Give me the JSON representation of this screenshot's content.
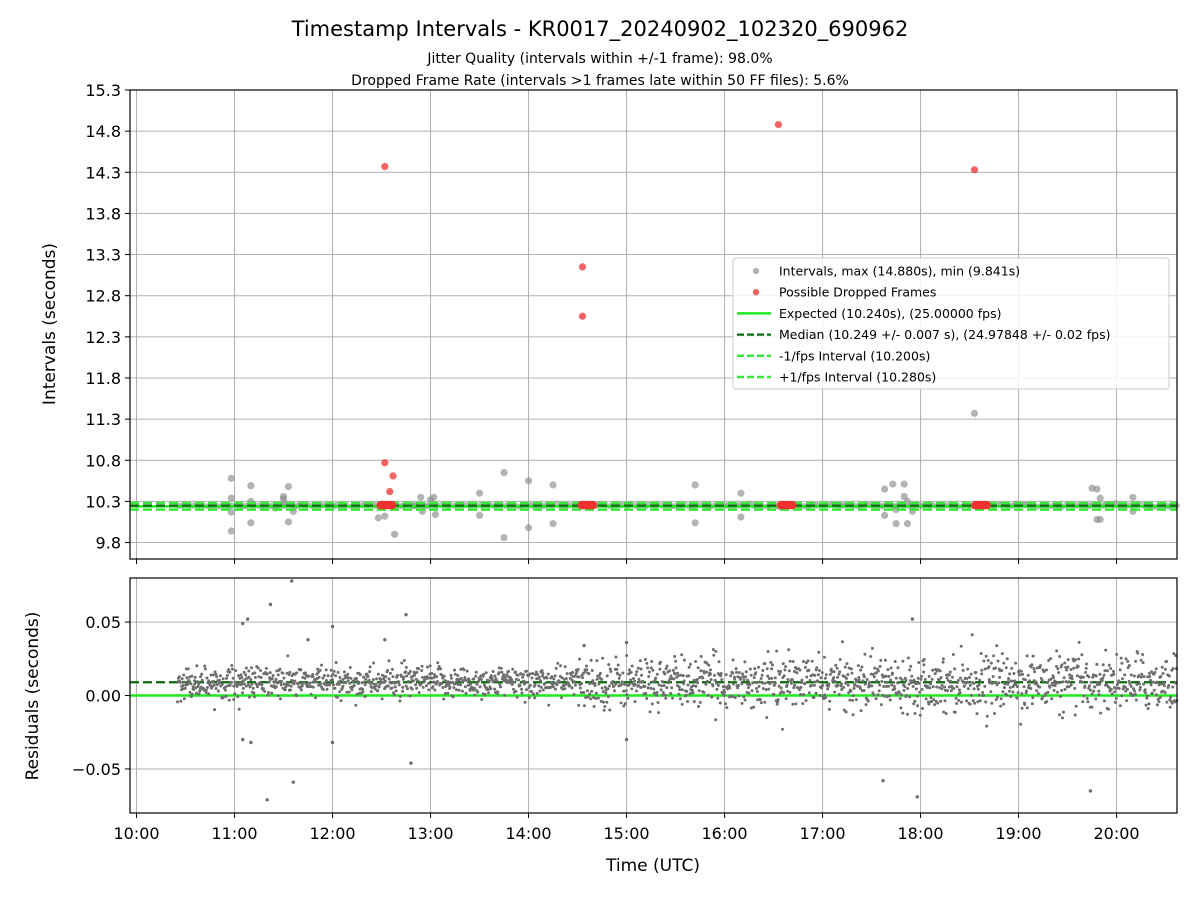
{
  "figure": {
    "title": "Timestamp Intervals - KR0017_20240902_102320_690962",
    "subtitle_1": "Jitter Quality (intervals within +/-1 frame): 98.0%",
    "subtitle_2": "Dropped Frame Rate (intervals >1 frames late within 50 FF files): 5.6%"
  },
  "chart_data": [
    {
      "type": "scatter",
      "xlabel": "",
      "ylabel": "Intervals (seconds)",
      "xlim": [
        "09:56",
        "20:37"
      ],
      "ylim": [
        9.6,
        15.3
      ],
      "yticks": [
        "9.8",
        "10.3",
        "10.8",
        "11.3",
        "11.8",
        "12.3",
        "12.8",
        "13.3",
        "13.8",
        "14.3",
        "14.8",
        "15.3"
      ],
      "grid": true,
      "legend_position": "center-right",
      "colors": {
        "intervals": "#8c8c8c",
        "dropped": "#f03030",
        "expected": "#1ee81e",
        "median": "#0a6a0a",
        "fps_bounds": "#3ae83a"
      },
      "series": [
        {
          "name": "Intervals, max (14.880s), min (9.841s)",
          "points": [
            [
              "10:58",
              10.58
            ],
            [
              "10:58",
              10.34
            ],
            [
              "10:58",
              10.17
            ],
            [
              "10:58",
              9.94
            ],
            [
              "11:10",
              10.49
            ],
            [
              "11:10",
              10.3
            ],
            [
              "11:10",
              10.04
            ],
            [
              "11:25",
              10.22
            ],
            [
              "11:30",
              10.33
            ],
            [
              "11:30",
              10.36
            ],
            [
              "11:31",
              10.27
            ],
            [
              "11:33",
              10.48
            ],
            [
              "11:33",
              10.05
            ],
            [
              "11:36",
              10.18
            ],
            [
              "12:28",
              10.1
            ],
            [
              "12:32",
              10.12
            ],
            [
              "12:38",
              9.9
            ],
            [
              "12:50",
              10.25
            ],
            [
              "12:54",
              10.35
            ],
            [
              "12:55",
              10.18
            ],
            [
              "13:00",
              10.32
            ],
            [
              "13:02",
              10.35
            ],
            [
              "13:03",
              10.14
            ],
            [
              "13:30",
              10.4
            ],
            [
              "13:30",
              10.13
            ],
            [
              "13:45",
              10.65
            ],
            [
              "13:45",
              9.86
            ],
            [
              "14:00",
              10.55
            ],
            [
              "14:00",
              9.98
            ],
            [
              "14:15",
              10.5
            ],
            [
              "14:15",
              10.03
            ],
            [
              "15:42",
              10.5
            ],
            [
              "15:42",
              10.04
            ],
            [
              "16:10",
              10.4
            ],
            [
              "16:10",
              10.11
            ],
            [
              "17:38",
              10.45
            ],
            [
              "17:38",
              10.13
            ],
            [
              "17:43",
              10.51
            ],
            [
              "17:45",
              10.2
            ],
            [
              "17:45",
              10.03
            ],
            [
              "17:50",
              10.51
            ],
            [
              "17:50",
              10.36
            ],
            [
              "17:52",
              10.3
            ],
            [
              "17:52",
              10.03
            ],
            [
              "17:55",
              10.18
            ],
            [
              "18:33",
              11.37
            ],
            [
              "19:45",
              10.46
            ],
            [
              "19:48",
              10.45
            ],
            [
              "19:48",
              10.08
            ],
            [
              "19:50",
              10.08
            ],
            [
              "19:50",
              10.34
            ],
            [
              "20:10",
              10.35
            ],
            [
              "20:10",
              10.18
            ]
          ]
        },
        {
          "name": "Possible Dropped Frames",
          "points": [
            [
              "12:32",
              14.37
            ],
            [
              "12:32",
              10.77
            ],
            [
              "12:35",
              10.42
            ],
            [
              "12:37",
              10.61
            ],
            [
              "14:33",
              13.15
            ],
            [
              "14:33",
              12.55
            ],
            [
              "16:33",
              14.88
            ],
            [
              "18:33",
              14.33
            ]
          ],
          "clusters": [
            "12:33",
            "14:36",
            "16:38",
            "18:37"
          ]
        },
        {
          "name": "Expected (10.240s), (25.00000 fps)",
          "y": 10.24
        },
        {
          "name": "Median (10.249 +/- 0.007 s), (24.97848 +/- 0.02 fps)",
          "y": 10.249
        },
        {
          "name": "-1/fps Interval (10.200s)",
          "y": 10.2
        },
        {
          "name": "+1/fps Interval (10.280s)",
          "y": 10.28
        }
      ]
    },
    {
      "type": "scatter",
      "xlabel": "Time (UTC)",
      "ylabel": "Residuals (seconds)",
      "xlim": [
        "09:56",
        "20:37"
      ],
      "ylim": [
        -0.08,
        0.08
      ],
      "xticks": [
        "10:00",
        "11:00",
        "12:00",
        "13:00",
        "14:00",
        "15:00",
        "16:00",
        "17:00",
        "18:00",
        "19:00",
        "20:00"
      ],
      "yticks": [
        "-0.05",
        "0.00",
        "0.05"
      ],
      "grid": true,
      "median_residual": 0.009,
      "expected_residual": 0.0,
      "outliers": [
        [
          "11:05",
          0.049
        ],
        [
          "11:08",
          0.052
        ],
        [
          "11:20",
          -0.071
        ],
        [
          "11:22",
          0.062
        ],
        [
          "11:35",
          0.078
        ],
        [
          "11:36",
          -0.059
        ],
        [
          "11:45",
          0.038
        ],
        [
          "12:00",
          0.047
        ],
        [
          "12:00",
          -0.032
        ],
        [
          "12:45",
          0.055
        ],
        [
          "12:48",
          -0.046
        ],
        [
          "12:32",
          0.038
        ],
        [
          "14:34",
          0.034
        ],
        [
          "15:00",
          0.036
        ],
        [
          "15:00",
          -0.03
        ],
        [
          "17:37",
          -0.058
        ],
        [
          "17:55",
          0.052
        ],
        [
          "17:58",
          -0.069
        ],
        [
          "19:44",
          -0.065
        ],
        [
          "11:05",
          -0.03
        ],
        [
          "11:10",
          -0.032
        ]
      ]
    }
  ]
}
